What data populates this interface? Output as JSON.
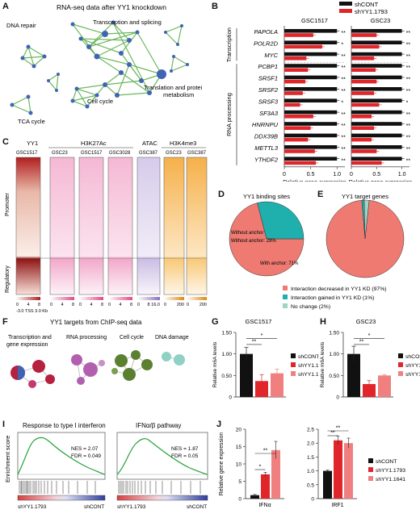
{
  "panel_letters": [
    "A",
    "B",
    "C",
    "D",
    "E",
    "F",
    "G",
    "H",
    "I",
    "J"
  ],
  "colors": {
    "shcont": "#111111",
    "sh1793": "#e0262b",
    "sh1641": "#f08080",
    "network": "#5bb04b",
    "node": "#3f64b4",
    "teal": "#1fb0ad",
    "salmon": "#ee7a72",
    "pink": "#f08cb8",
    "orange": "#f3a33a",
    "lavender": "#b8a6d8",
    "maroon": "#b5213e"
  },
  "panelA": {
    "title": "RNA-seq data after YY1 knockdown",
    "clusters": [
      "DNA repair",
      "Transcription and splicing",
      "Translation and protein metabolism",
      "Cell cycle",
      "TCA cycle"
    ]
  },
  "panelC": {
    "col_labels": [
      "YY1",
      "H3K27Ac",
      "ATAC",
      "H3K4me3"
    ],
    "sub_labels": [
      "GSC1517",
      "GSC23",
      "GSC1517",
      "GSC3028",
      "GSC387",
      "GSC23",
      "GSC387"
    ],
    "row_labels": [
      "Promoter",
      "Regulatory"
    ],
    "axis_label": "-3.0  TSS  3.0 Kb",
    "scales": [
      [
        "0",
        "4",
        "8"
      ],
      [
        "0",
        "4",
        "8"
      ],
      [
        "0",
        "4",
        "8"
      ],
      [
        "0",
        "4",
        "8"
      ],
      [
        "0",
        "8",
        "16.0"
      ],
      [
        "0",
        "200"
      ],
      [
        "0",
        "200"
      ]
    ]
  },
  "panelF": {
    "title": "YY1 targets from ChIP-seq data",
    "clusters": [
      "Transcription and gene expression",
      "RNA processing",
      "Cell cycle",
      "DNA damage"
    ]
  },
  "panelI": {
    "ylabel": "Enrichment score",
    "left": {
      "title": "Response to type I interferon",
      "nes": "NES = 2.07",
      "fdr": "FDR = 0.049",
      "xl": "shYY1.1793",
      "xr": "shCONT"
    },
    "right": {
      "title": "IFNα/β pathway",
      "nes": "NES = 1.87",
      "fdr": "FDR = 0.05",
      "xl": "shYY1.1793",
      "xr": "shCONT"
    }
  },
  "chart_data": [
    {
      "type": "bar",
      "panel": "B",
      "groups": [
        "Transcription",
        "RNA processing"
      ],
      "categories": [
        "PAPOLA",
        "POLR2D",
        "MYC",
        "PCBP1",
        "SRSF1",
        "SRSF2",
        "SRSF3",
        "SF3A3",
        "HNRNPU",
        "DDX39B",
        "METTL3",
        "YTHDF2"
      ],
      "legend": [
        "shCONT",
        "shYY1.1793"
      ],
      "subplots": [
        {
          "title": "GSC1517",
          "series": [
            {
              "name": "shCONT",
              "values": [
                1,
                1,
                1,
                1,
                1,
                1,
                1,
                1,
                1,
                1,
                1,
                1
              ]
            },
            {
              "name": "shYY1.1793",
              "values": [
                0.55,
                0.72,
                0.42,
                0.45,
                0.4,
                0.35,
                0.3,
                0.55,
                0.5,
                0.45,
                0.58,
                0.6
              ]
            }
          ],
          "sig": [
            "**",
            "*",
            "**",
            "**",
            "**",
            "**",
            "*",
            "**",
            "**",
            "**",
            "**",
            "**"
          ]
        },
        {
          "title": "GSC23",
          "series": [
            {
              "name": "shCONT",
              "values": [
                1,
                1,
                1,
                1,
                1,
                1,
                1,
                1,
                1,
                1,
                1,
                1
              ]
            },
            {
              "name": "shYY1.1793",
              "values": [
                0.5,
                0.55,
                0.45,
                0.48,
                0.5,
                0.45,
                0.55,
                0.4,
                0.45,
                0.4,
                0.5,
                0.6
              ]
            }
          ],
          "sig": [
            "**",
            "**",
            "**",
            "**",
            "**",
            "**",
            "*",
            "**",
            "**",
            "**",
            "**",
            "**"
          ]
        }
      ],
      "xlabel": "Relative gene expression",
      "xticks": [
        "0",
        "0.5",
        "1.0"
      ],
      "xlim": [
        0,
        1.15
      ]
    },
    {
      "type": "pie",
      "panel": "D",
      "title": "YY1 binding sites",
      "labels": [
        "With anchor: 71%",
        "Without anchor: 29%"
      ],
      "values": [
        71,
        29
      ]
    },
    {
      "type": "pie",
      "panel": "E",
      "title": "YY1 target genes",
      "labels": [
        "Interaction decreased in YY1 KD (97%)",
        "Interaction gained in YY1 KD (1%)",
        "No change (2%)"
      ],
      "values": [
        97,
        1,
        2
      ]
    },
    {
      "type": "bar",
      "panel": "G",
      "title": "GSC1517",
      "ylabel": "Relative m6A levels",
      "categories": [
        "shCONT",
        "shYY1.1793",
        "shYY1.1641"
      ],
      "values": [
        1.0,
        0.37,
        0.55
      ],
      "errors": [
        0.15,
        0.15,
        0.1
      ],
      "ylim": [
        0,
        1.5
      ],
      "yticks": [
        "0",
        "0.50",
        "1.00",
        "1.50"
      ],
      "sig": [
        {
          "a": 0,
          "b": 1,
          "t": "**"
        },
        {
          "a": 0,
          "b": 2,
          "t": "*"
        }
      ]
    },
    {
      "type": "bar",
      "panel": "H",
      "title": "GSC23",
      "ylabel": "Relative m6A levels",
      "categories": [
        "shCONT",
        "shYY1.1793",
        "shYY1.1641"
      ],
      "values": [
        1.0,
        0.3,
        0.5
      ],
      "errors": [
        0.18,
        0.08,
        0.02
      ],
      "ylim": [
        0,
        1.5
      ],
      "yticks": [
        "0",
        "0.50",
        "1.00",
        "1.50"
      ],
      "sig": [
        {
          "a": 0,
          "b": 1,
          "t": "**"
        },
        {
          "a": 0,
          "b": 2,
          "t": "*"
        }
      ]
    },
    {
      "type": "bar",
      "panel": "J",
      "ylabel": "Relative gene expression",
      "legend": [
        "shCONT",
        "shYY1.1793",
        "shYY1.1641"
      ],
      "subplots": [
        {
          "category": "IFNα",
          "values": [
            1.0,
            7.0,
            14.0
          ],
          "errors": [
            0.2,
            0.6,
            2.5
          ],
          "ylim": [
            0,
            20
          ],
          "yticks": [
            "0",
            "5",
            "10",
            "15",
            "20"
          ],
          "sig": [
            {
              "a": 0,
              "b": 1,
              "t": "*"
            },
            {
              "a": 0,
              "b": 2,
              "t": "**"
            }
          ]
        },
        {
          "category": "IRF1",
          "values": [
            1.0,
            2.1,
            2.0
          ],
          "errors": [
            0.03,
            0.15,
            0.18
          ],
          "ylim": [
            0,
            2.5
          ],
          "yticks": [
            "0",
            "0.5",
            "1.0",
            "1.5",
            "2.0",
            "2.5"
          ],
          "sig": [
            {
              "a": 0,
              "b": 1,
              "t": "**"
            },
            {
              "a": 0,
              "b": 2,
              "t": "**"
            }
          ]
        }
      ]
    }
  ]
}
